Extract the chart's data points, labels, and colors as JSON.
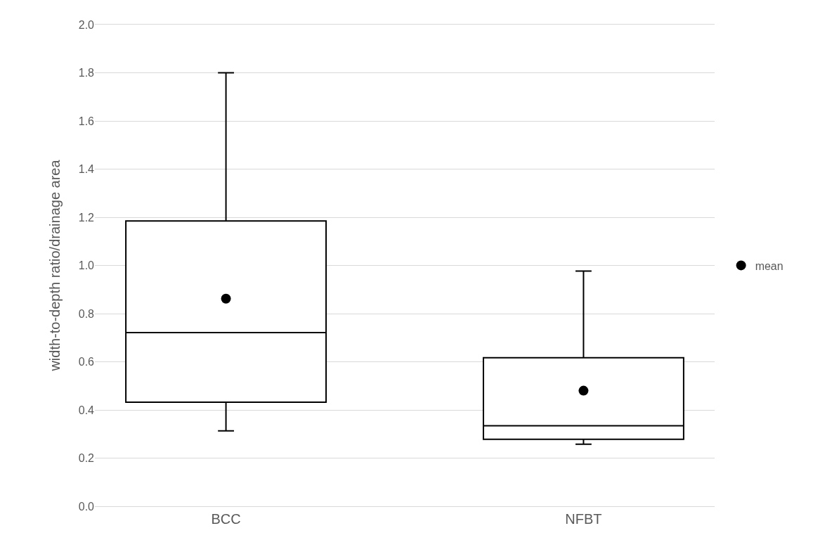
{
  "chart_data": {
    "type": "box",
    "ylabel": "width-to-depth ratio/drainage area",
    "categories": [
      "BCC",
      "NFBT"
    ],
    "boxes": [
      {
        "low": 0.313,
        "q1": 0.432,
        "median": 0.721,
        "q3": 1.185,
        "high": 1.8
      },
      {
        "low": 0.258,
        "q1": 0.278,
        "median": 0.334,
        "q3": 0.617,
        "high": 0.977
      }
    ],
    "series": [
      {
        "type": "scatter",
        "name": "mean",
        "color": "#000000",
        "x": [
          "BCC",
          "NFBT"
        ],
        "values": [
          0.862,
          0.48
        ]
      }
    ],
    "color": "#000000",
    "ylim": [
      0,
      2.0
    ],
    "yticks": [
      {
        "value": 0,
        "label": "0.0"
      },
      0.2,
      0.4,
      0.6,
      0.8,
      {
        "value": 1,
        "label": "1.0"
      },
      1.2,
      1.4,
      1.6,
      1.8,
      {
        "value": 2,
        "label": "2.0"
      }
    ],
    "grid": "y",
    "legend": "right",
    "marker": "circle"
  }
}
